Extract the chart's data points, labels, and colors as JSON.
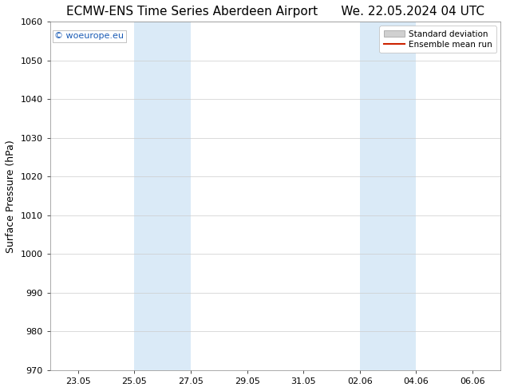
{
  "title": "ECMW-ENS Time Series Aberdeen Airport      We. 22.05.2024 04 UTC",
  "ylabel": "Surface Pressure (hPa)",
  "ylim": [
    970,
    1060
  ],
  "yticks": [
    970,
    980,
    990,
    1000,
    1010,
    1020,
    1030,
    1040,
    1050,
    1060
  ],
  "xlim": [
    0,
    16
  ],
  "xtick_labels": [
    "23.05",
    "25.05",
    "27.05",
    "29.05",
    "31.05",
    "02.06",
    "04.06",
    "06.06"
  ],
  "xtick_positions": [
    1,
    3,
    5,
    7,
    9,
    11,
    13,
    15
  ],
  "shaded_bands": [
    {
      "x_start": 3,
      "x_end": 5
    },
    {
      "x_start": 11,
      "x_end": 13
    }
  ],
  "shaded_color": "#daeaf7",
  "watermark_text": "© woeurope.eu",
  "watermark_color": "#1a5bb5",
  "legend_items": [
    {
      "label": "Standard deviation",
      "type": "fill",
      "color": "#d0d0d0"
    },
    {
      "label": "Ensemble mean run",
      "type": "line",
      "color": "#cc2200"
    }
  ],
  "bg_color": "#ffffff",
  "grid_color": "#cccccc",
  "title_fontsize": 11,
  "ylabel_fontsize": 9,
  "tick_fontsize": 8,
  "watermark_fontsize": 8,
  "legend_fontsize": 7.5
}
